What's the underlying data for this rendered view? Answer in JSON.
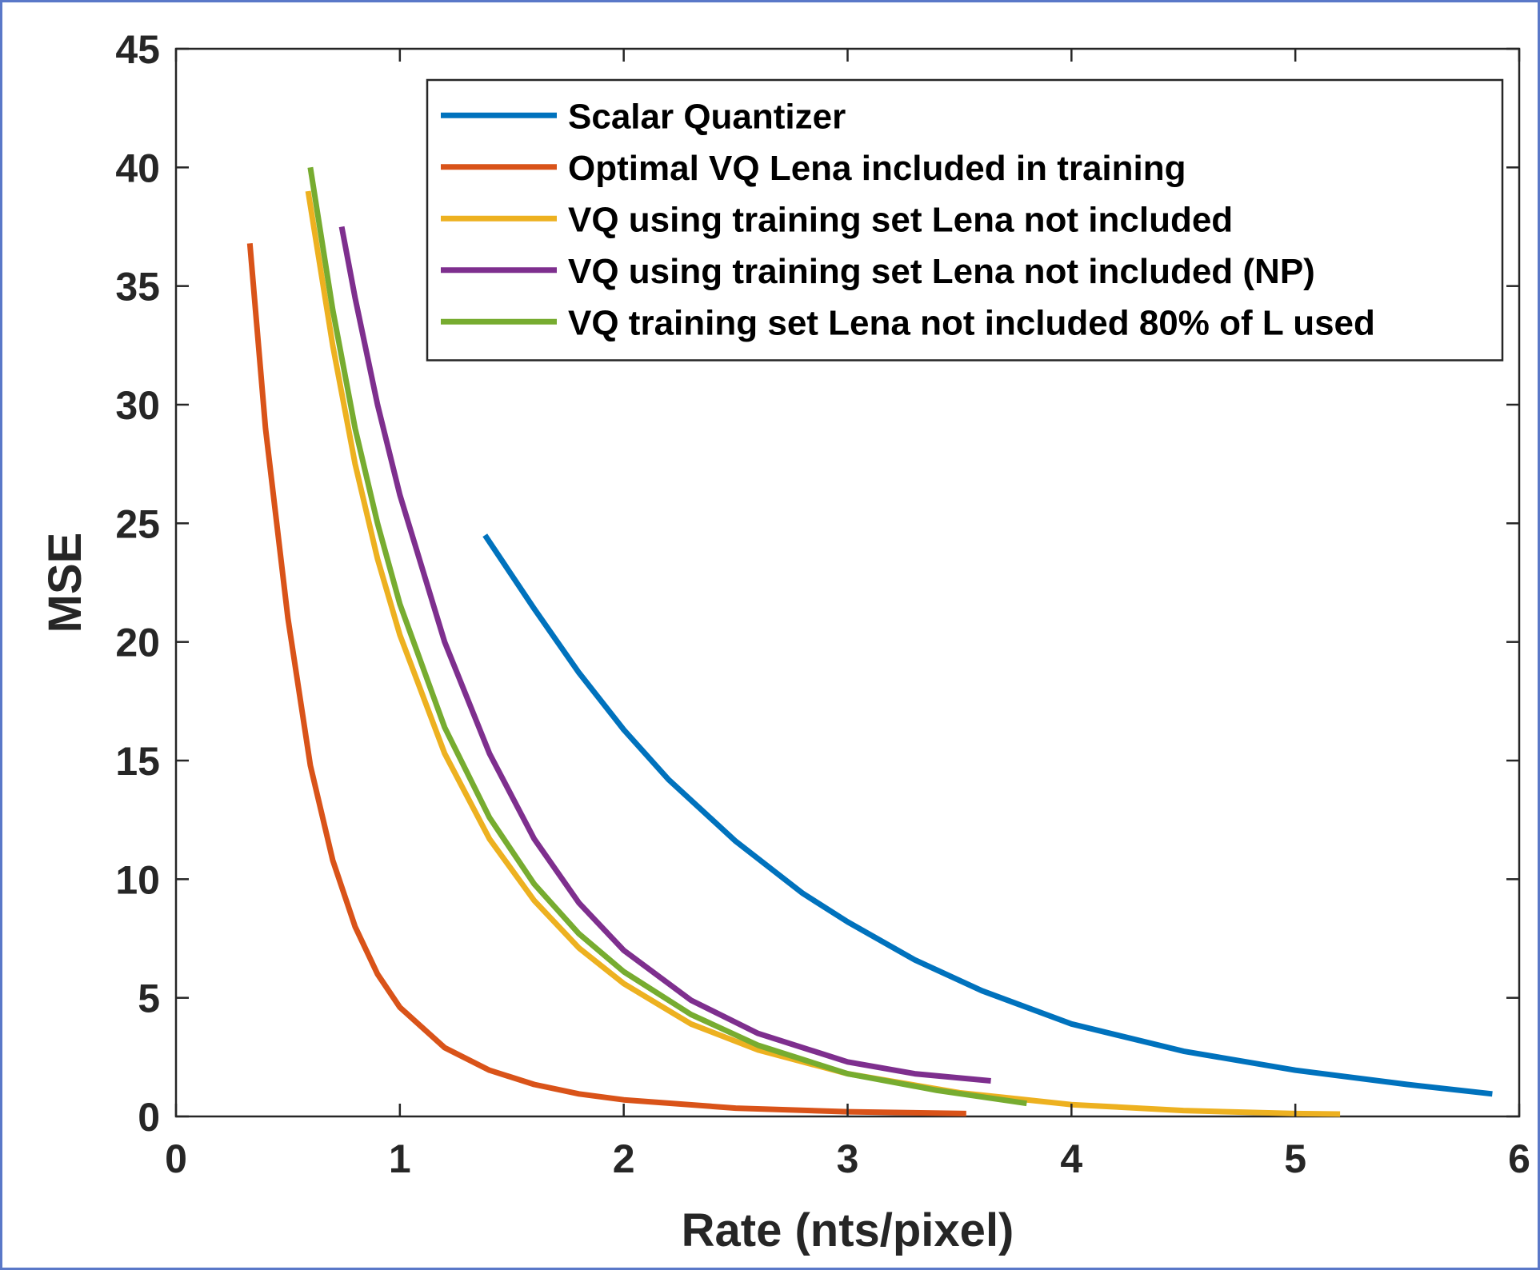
{
  "chart_data": {
    "type": "line",
    "title": "",
    "xlabel": "Rate (nts/pixel)",
    "ylabel": "MSE",
    "xlim": [
      0,
      6
    ],
    "ylim": [
      0,
      45
    ],
    "xticks": [
      0,
      1,
      2,
      3,
      4,
      5,
      6
    ],
    "yticks": [
      0,
      5,
      10,
      15,
      20,
      25,
      30,
      35,
      40,
      45
    ],
    "grid": false,
    "legend_position": "top-right",
    "series": [
      {
        "name": "Scalar Quantizer",
        "color": "#0072BD",
        "x": [
          1.38,
          1.6,
          1.8,
          2.0,
          2.2,
          2.5,
          2.8,
          3.0,
          3.3,
          3.6,
          4.0,
          4.5,
          5.0,
          5.5,
          5.88
        ],
        "y": [
          24.5,
          21.4,
          18.7,
          16.3,
          14.2,
          11.6,
          9.4,
          8.2,
          6.6,
          5.3,
          3.9,
          2.75,
          1.95,
          1.35,
          0.95
        ]
      },
      {
        "name": "Optimal VQ Lena included in training",
        "color": "#D95319",
        "x": [
          0.33,
          0.4,
          0.5,
          0.6,
          0.7,
          0.8,
          0.9,
          1.0,
          1.2,
          1.4,
          1.6,
          1.8,
          2.0,
          2.5,
          3.0,
          3.53
        ],
        "y": [
          36.8,
          29.0,
          21.0,
          14.8,
          10.8,
          8.0,
          6.0,
          4.6,
          2.9,
          1.95,
          1.35,
          0.95,
          0.7,
          0.35,
          0.2,
          0.12
        ]
      },
      {
        "name": "VQ using training set Lena not included",
        "color": "#EDB120",
        "x": [
          0.59,
          0.7,
          0.8,
          0.9,
          1.0,
          1.2,
          1.4,
          1.6,
          1.8,
          2.0,
          2.3,
          2.6,
          3.0,
          3.5,
          4.0,
          4.5,
          5.0,
          5.2
        ],
        "y": [
          39.0,
          32.5,
          27.5,
          23.5,
          20.3,
          15.3,
          11.7,
          9.1,
          7.1,
          5.6,
          3.9,
          2.8,
          1.8,
          1.0,
          0.5,
          0.25,
          0.12,
          0.1
        ]
      },
      {
        "name": "VQ using training set Lena not included (NP)",
        "color": "#7E2F8E",
        "x": [
          0.74,
          0.8,
          0.9,
          1.0,
          1.2,
          1.4,
          1.6,
          1.8,
          2.0,
          2.3,
          2.6,
          3.0,
          3.3,
          3.64
        ],
        "y": [
          37.5,
          34.5,
          30.0,
          26.2,
          20.0,
          15.3,
          11.7,
          9.0,
          7.0,
          4.9,
          3.5,
          2.3,
          1.8,
          1.5
        ]
      },
      {
        "name": "VQ training set Lena not included 80% of L used",
        "color": "#77AC30",
        "x": [
          0.6,
          0.7,
          0.8,
          0.9,
          1.0,
          1.2,
          1.4,
          1.6,
          1.8,
          2.0,
          2.3,
          2.6,
          3.0,
          3.4,
          3.8
        ],
        "y": [
          40.0,
          34.0,
          29.0,
          25.0,
          21.6,
          16.4,
          12.6,
          9.8,
          7.7,
          6.1,
          4.3,
          3.0,
          1.8,
          1.1,
          0.55
        ]
      }
    ]
  }
}
